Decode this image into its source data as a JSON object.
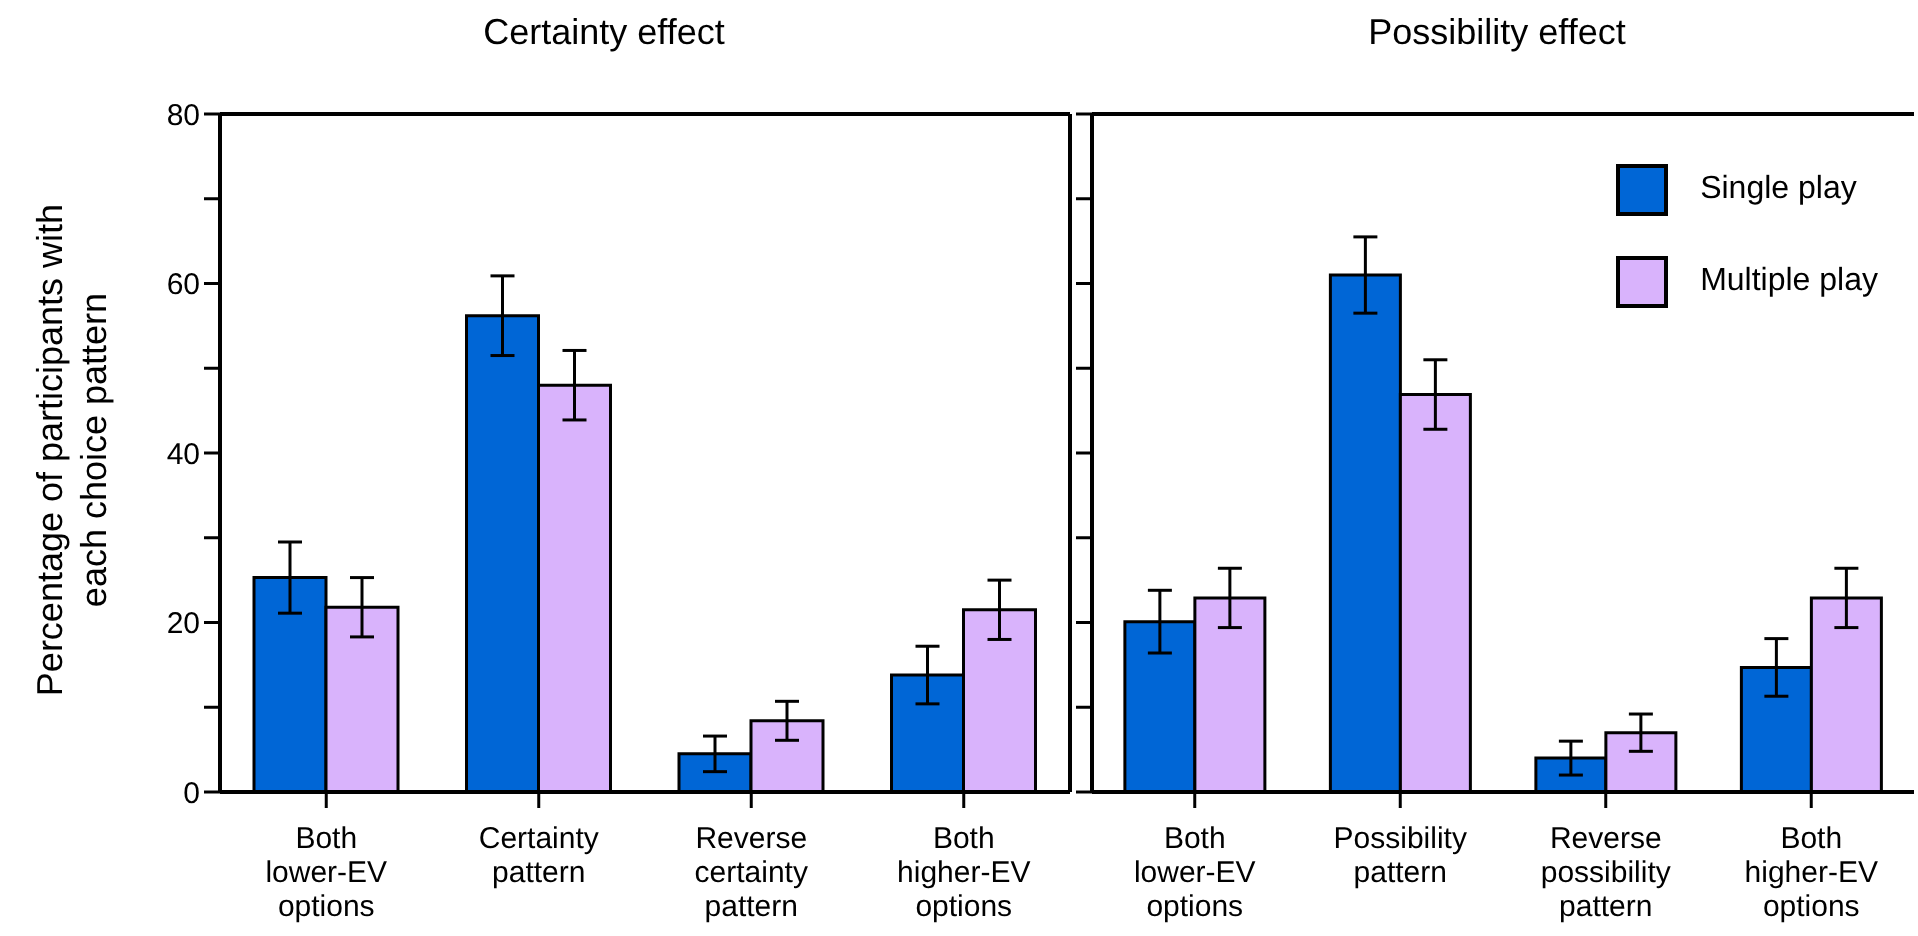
{
  "chart_data": [
    {
      "type": "bar",
      "title": "Certainty effect",
      "ylabel": "Percentage of participants with each choice pattern",
      "categories": [
        "Both lower-EV options",
        "Certainty pattern",
        "Reverse certainty pattern",
        "Both higher-EV options"
      ],
      "series": [
        {
          "color": "#0066d6",
          "values": [
            25.3,
            56.2,
            4.5,
            13.8
          ],
          "errors": [
            4.2,
            4.7,
            2.1,
            3.4
          ]
        },
        {
          "color": "#d9b3fc",
          "values": [
            21.8,
            48.0,
            8.4,
            21.5
          ],
          "errors": [
            3.5,
            4.1,
            2.3,
            3.5
          ]
        }
      ],
      "ylim": [
        0,
        80
      ],
      "yticks": [
        0,
        {
          "value": 10,
          "label": null
        },
        20,
        {
          "value": 30,
          "label": null
        },
        40,
        {
          "value": 50,
          "label": null
        },
        60,
        {
          "value": 70,
          "label": null
        },
        80
      ],
      "grid": false,
      "legend": false
    },
    {
      "type": "bar",
      "title": "Possibility effect",
      "categories": [
        "Both lower-EV options",
        "Possibility pattern",
        "Reverse possibility pattern",
        "Both higher-EV options"
      ],
      "series": [
        {
          "name": "Single play",
          "color": "#0066d6",
          "values": [
            20.1,
            61.0,
            4.0,
            14.7
          ],
          "errors": [
            3.7,
            4.5,
            2.0,
            3.4
          ]
        },
        {
          "name": "Multiple play",
          "color": "#d9b3fc",
          "values": [
            22.9,
            46.9,
            7.0,
            22.9
          ],
          "errors": [
            3.5,
            4.1,
            2.2,
            3.5
          ]
        }
      ],
      "ylim": [
        0,
        80
      ],
      "yticks": [
        0,
        {
          "value": 10,
          "label": null
        },
        20,
        {
          "value": 30,
          "label": null
        },
        40,
        {
          "value": 50,
          "label": null
        },
        60,
        {
          "value": 70,
          "label": null
        },
        80
      ],
      "tick_labels": "x",
      "grid": false,
      "legend": "top right"
    }
  ]
}
